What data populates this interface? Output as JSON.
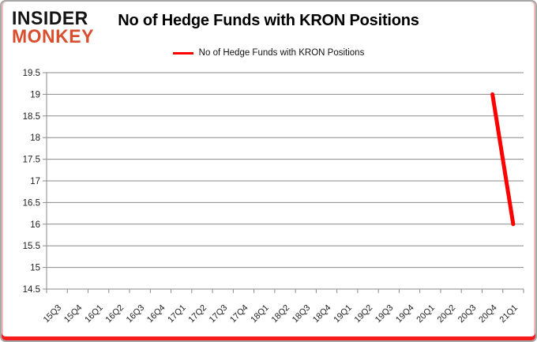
{
  "colors": {
    "accent_red": "#f81b1b",
    "frame_gray": "#a8a8a8",
    "frame_pink": "#f3bdbd",
    "logo_black": "#141414",
    "logo_red": "#d94e2f",
    "series_red": "#ff0000",
    "grid_gray": "#8a8a8a",
    "text_dark": "#1f1f1f"
  },
  "logo": {
    "line1": "INSIDER",
    "line2": "MONKEY"
  },
  "header": {
    "title": "No of Hedge Funds with KRON Positions"
  },
  "legend": {
    "label": "No of Hedge Funds with KRON Positions"
  },
  "chart_data": {
    "type": "line",
    "title": "No of Hedge Funds with KRON Positions",
    "categories": [
      "15Q3",
      "15Q4",
      "16Q1",
      "16Q2",
      "16Q3",
      "16Q4",
      "17Q1",
      "17Q2",
      "17Q3",
      "17Q4",
      "18Q1",
      "18Q2",
      "18Q3",
      "18Q4",
      "19Q1",
      "19Q2",
      "19Q3",
      "19Q4",
      "20Q1",
      "20Q2",
      "20Q3",
      "20Q4",
      "21Q1"
    ],
    "series": [
      {
        "name": "No of Hedge Funds with KRON Positions",
        "color": "#ff0000",
        "values": [
          null,
          null,
          null,
          null,
          null,
          null,
          null,
          null,
          null,
          null,
          null,
          null,
          null,
          null,
          null,
          null,
          null,
          null,
          null,
          null,
          null,
          19,
          16
        ]
      }
    ],
    "ylim": [
      14.5,
      19.5
    ],
    "ytick_step": 0.5,
    "grid": true,
    "legend_position": "top"
  }
}
